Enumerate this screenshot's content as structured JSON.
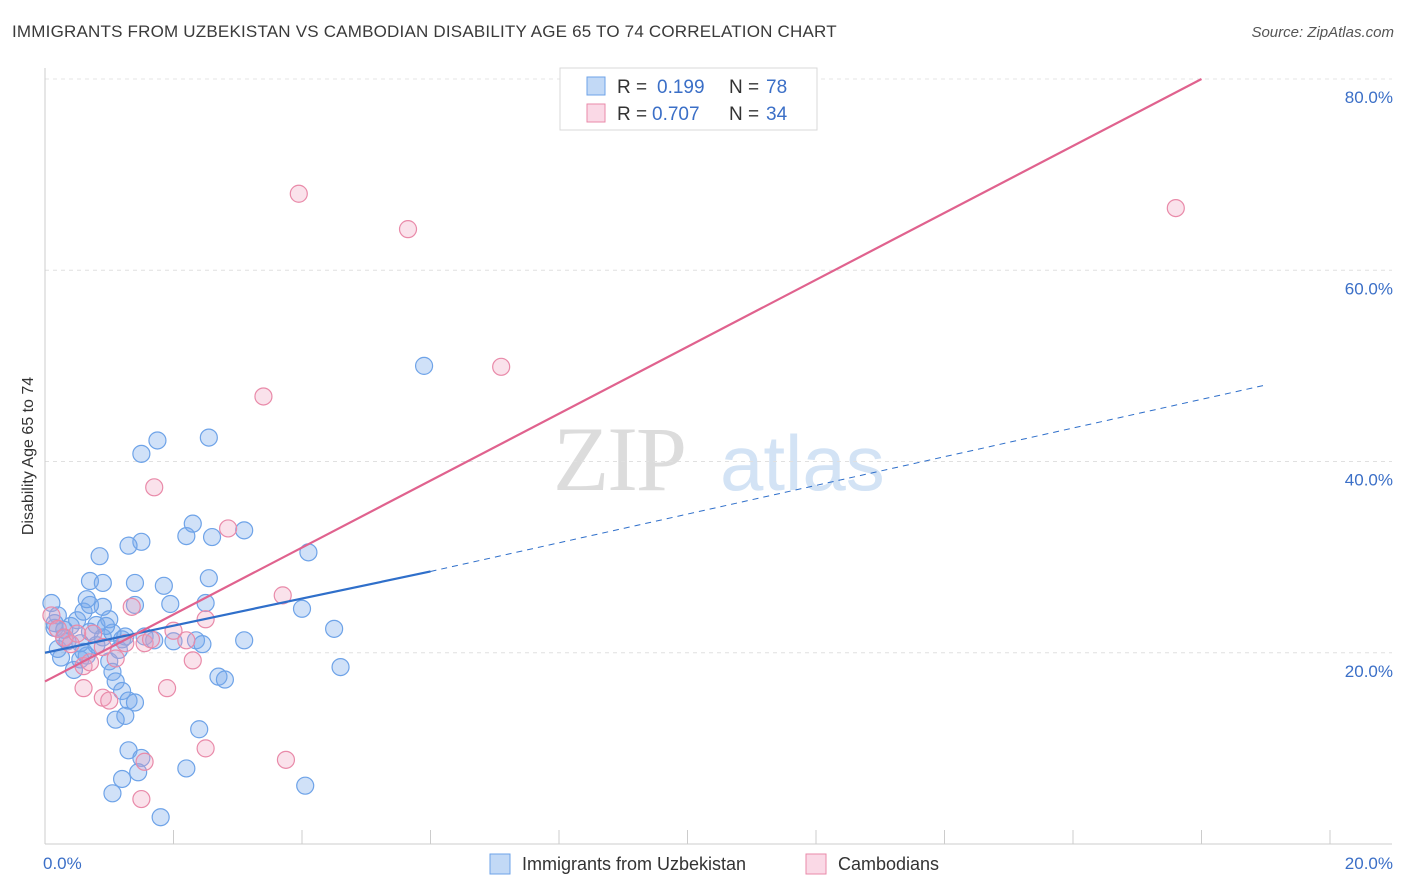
{
  "title": "IMMIGRANTS FROM UZBEKISTAN VS CAMBODIAN DISABILITY AGE 65 TO 74 CORRELATION CHART",
  "source": "Source: ZipAtlas.com",
  "watermark": {
    "zip": "ZIP",
    "atlas": "atlas"
  },
  "colors": {
    "blue": "#6ea3e8",
    "blue_fill": "rgba(120,170,235,0.35)",
    "blue_line": "#2f6fca",
    "pink": "#e98aa9",
    "pink_fill": "rgba(240,160,190,0.30)",
    "pink_line": "#e0628e",
    "axis_text": "#3b6fc7"
  },
  "legend": {
    "series": [
      {
        "r_label": "R =",
        "r_value": "0.199",
        "n_label": "N =",
        "n_value": "78"
      },
      {
        "r_label": "R =",
        "r_value": "0.707",
        "n_label": "N =",
        "n_value": "34"
      }
    ]
  },
  "bottom_legend": [
    "Immigrants from Uzbekistan",
    "Cambodians"
  ],
  "chart_data": {
    "type": "scatter",
    "title": "IMMIGRANTS FROM UZBEKISTAN VS CAMBODIAN DISABILITY AGE 65 TO 74 CORRELATION CHART",
    "xlabel": "",
    "ylabel": "Disability Age 65 to 74",
    "xlim": [
      0,
      20
    ],
    "ylim": [
      0,
      80
    ],
    "x_tick_labels": [
      "0.0%",
      "20.0%"
    ],
    "y_ticks": [
      20,
      40,
      60,
      80
    ],
    "y_tick_labels": [
      "20.0%",
      "40.0%",
      "60.0%",
      "80.0%"
    ],
    "grid": true,
    "legend_position": "top-center",
    "series": [
      {
        "name": "Immigrants from Uzbekistan",
        "r": 0.199,
        "n": 78,
        "trend": {
          "x0": 0,
          "y0": 20.0,
          "x1": 6.0,
          "y1": 28.5,
          "dashed_to_x": 19.0,
          "dashed_to_y": 48.0
        },
        "points": [
          [
            0.1,
            25.2
          ],
          [
            0.2,
            23.9
          ],
          [
            0.15,
            22.6
          ],
          [
            0.3,
            21.5
          ],
          [
            0.2,
            20.4
          ],
          [
            0.25,
            19.5
          ],
          [
            0.4,
            22.8
          ],
          [
            0.5,
            23.4
          ],
          [
            0.6,
            24.3
          ],
          [
            0.7,
            22.2
          ],
          [
            0.35,
            21.2
          ],
          [
            0.45,
            18.2
          ],
          [
            0.55,
            19.3
          ],
          [
            0.65,
            19.7
          ],
          [
            0.8,
            20.8
          ],
          [
            0.8,
            22.9
          ],
          [
            0.9,
            21.6
          ],
          [
            1.0,
            23.5
          ],
          [
            0.9,
            24.8
          ],
          [
            0.7,
            25.0
          ],
          [
            0.65,
            25.6
          ],
          [
            0.7,
            27.5
          ],
          [
            0.9,
            27.3
          ],
          [
            0.85,
            30.1
          ],
          [
            1.05,
            22.1
          ],
          [
            1.0,
            19.1
          ],
          [
            1.05,
            18.0
          ],
          [
            1.1,
            17.0
          ],
          [
            1.2,
            16.0
          ],
          [
            1.15,
            20.3
          ],
          [
            1.2,
            21.4
          ],
          [
            1.3,
            15.0
          ],
          [
            1.25,
            13.4
          ],
          [
            1.1,
            13.0
          ],
          [
            1.4,
            14.8
          ],
          [
            1.3,
            9.8
          ],
          [
            1.5,
            9.0
          ],
          [
            1.45,
            7.5
          ],
          [
            1.2,
            6.8
          ],
          [
            1.05,
            5.3
          ],
          [
            1.4,
            25.0
          ],
          [
            1.4,
            27.3
          ],
          [
            1.7,
            21.3
          ],
          [
            1.85,
            27.0
          ],
          [
            1.95,
            25.1
          ],
          [
            2.0,
            21.2
          ],
          [
            2.2,
            32.2
          ],
          [
            2.3,
            33.5
          ],
          [
            2.35,
            21.3
          ],
          [
            2.45,
            20.9
          ],
          [
            2.5,
            25.2
          ],
          [
            2.55,
            27.8
          ],
          [
            2.6,
            32.1
          ],
          [
            2.7,
            17.5
          ],
          [
            2.8,
            17.2
          ],
          [
            3.1,
            32.8
          ],
          [
            3.1,
            21.3
          ],
          [
            2.4,
            12.0
          ],
          [
            2.2,
            7.9
          ],
          [
            1.8,
            2.8
          ],
          [
            1.5,
            31.6
          ],
          [
            1.3,
            31.2
          ],
          [
            1.5,
            40.8
          ],
          [
            1.75,
            42.2
          ],
          [
            2.55,
            42.5
          ],
          [
            4.1,
            30.5
          ],
          [
            4.0,
            24.6
          ],
          [
            4.5,
            22.5
          ],
          [
            4.6,
            18.5
          ],
          [
            4.05,
            6.1
          ],
          [
            5.9,
            50.0
          ],
          [
            0.15,
            23.1
          ],
          [
            0.3,
            22.4
          ],
          [
            0.55,
            21.0
          ],
          [
            0.6,
            20.1
          ],
          [
            0.95,
            22.8
          ],
          [
            1.25,
            21.7
          ],
          [
            1.55,
            21.7
          ]
        ]
      },
      {
        "name": "Cambodians",
        "r": 0.707,
        "n": 34,
        "trend": {
          "x0": 0,
          "y0": 17.0,
          "x1": 18.0,
          "y1": 80.0
        },
        "points": [
          [
            0.1,
            23.9
          ],
          [
            0.2,
            22.5
          ],
          [
            0.3,
            21.6
          ],
          [
            0.4,
            20.9
          ],
          [
            0.5,
            22.0
          ],
          [
            0.6,
            18.6
          ],
          [
            0.7,
            19.0
          ],
          [
            0.6,
            16.3
          ],
          [
            0.9,
            15.3
          ],
          [
            1.0,
            15.0
          ],
          [
            0.75,
            22.0
          ],
          [
            0.9,
            20.6
          ],
          [
            1.1,
            19.4
          ],
          [
            1.25,
            21.0
          ],
          [
            1.35,
            24.8
          ],
          [
            1.55,
            21.0
          ],
          [
            1.65,
            21.4
          ],
          [
            1.55,
            8.6
          ],
          [
            1.5,
            4.7
          ],
          [
            1.9,
            16.3
          ],
          [
            2.0,
            22.3
          ],
          [
            2.2,
            21.3
          ],
          [
            2.3,
            19.2
          ],
          [
            2.5,
            23.5
          ],
          [
            2.5,
            10.0
          ],
          [
            2.85,
            33.0
          ],
          [
            1.7,
            37.3
          ],
          [
            3.4,
            46.8
          ],
          [
            3.7,
            26.0
          ],
          [
            3.75,
            8.8
          ],
          [
            3.95,
            68.0
          ],
          [
            7.1,
            49.9
          ],
          [
            5.65,
            64.3
          ],
          [
            17.6,
            66.5
          ]
        ]
      }
    ]
  }
}
